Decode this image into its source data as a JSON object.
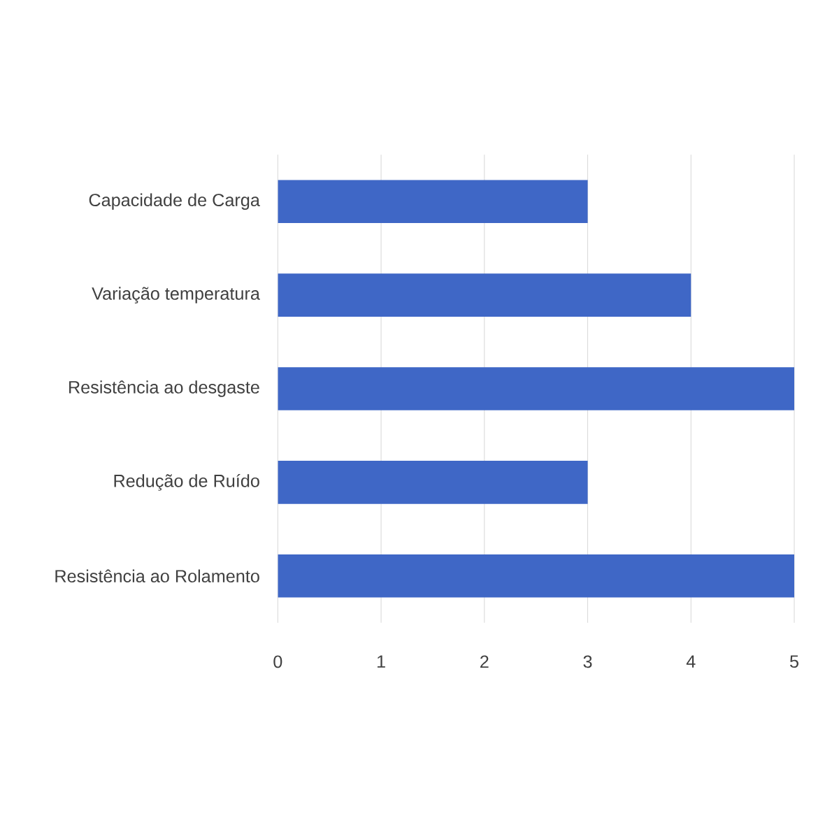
{
  "chart_data": {
    "type": "bar",
    "orientation": "horizontal",
    "categories": [
      "Capacidade de Carga",
      "Variação temperatura",
      "Resistência ao desgaste",
      "Redução de Ruído",
      "Resistência ao Rolamento"
    ],
    "values": [
      3,
      4,
      5,
      3,
      5
    ],
    "color": "#3f67c6",
    "xlim": [
      0,
      5
    ],
    "xticks": [
      0,
      1,
      2,
      3,
      4,
      5
    ],
    "grid": "x"
  }
}
